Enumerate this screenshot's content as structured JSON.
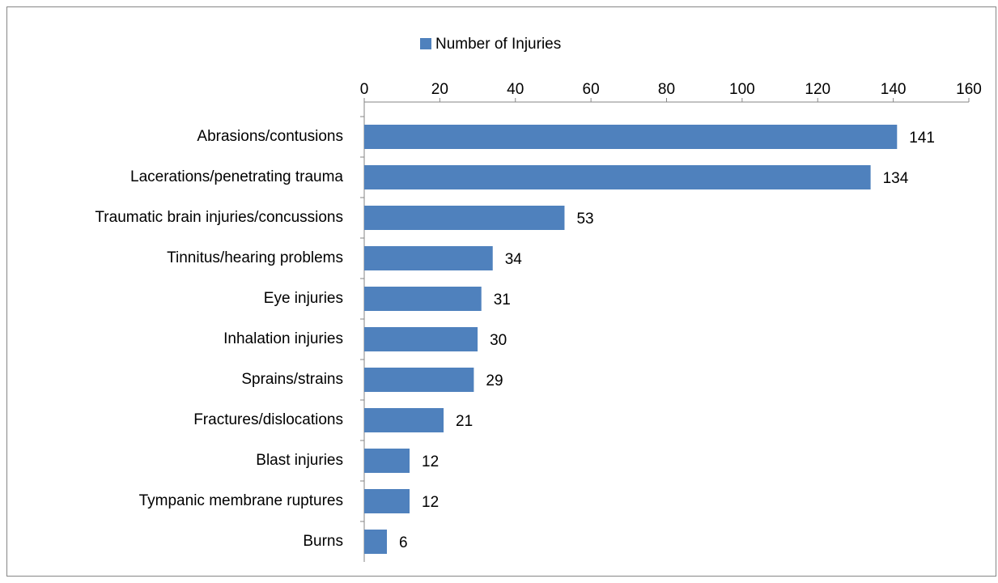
{
  "chart_data": {
    "type": "bar",
    "orientation": "horizontal",
    "categories": [
      "Abrasions/contusions",
      "Lacerations/penetrating trauma",
      "Traumatic brain injuries/concussions",
      "Tinnitus/hearing problems",
      "Eye injuries",
      "Inhalation injuries",
      "Sprains/strains",
      "Fractures/dislocations",
      "Blast injuries",
      "Tympanic membrane ruptures",
      "Burns"
    ],
    "series": [
      {
        "name": "Number of Injuries",
        "color": "#4f81bd",
        "values": [
          141,
          134,
          53,
          34,
          31,
          30,
          29,
          21,
          12,
          12,
          6
        ]
      }
    ],
    "xlim": [
      0,
      160
    ],
    "xticks": [
      0,
      20,
      40,
      60,
      80,
      100,
      120,
      140,
      160
    ],
    "grid": false,
    "legend": "top"
  }
}
